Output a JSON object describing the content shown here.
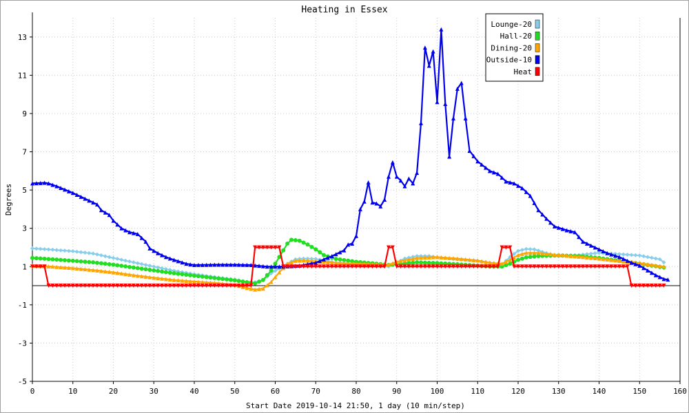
{
  "chart_data": {
    "type": "line",
    "title": "Heating in Essex",
    "xlabel": "Start Date 2019-10-14 21:50, 1 day (10 min/step)",
    "ylabel": "Degrees",
    "xlim": [
      0,
      160
    ],
    "ylim": [
      -5,
      14
    ],
    "x_ticks": [
      0,
      10,
      20,
      30,
      40,
      50,
      60,
      70,
      80,
      90,
      100,
      110,
      120,
      130,
      140,
      150,
      160
    ],
    "y_ticks": [
      -5,
      -3,
      -1,
      1,
      3,
      5,
      7,
      9,
      11,
      13
    ],
    "grid": true,
    "legend_position": "top-right",
    "series": [
      {
        "name": "Lounge-20",
        "color": "#87ceeb",
        "marker": "diamond",
        "points": [
          [
            0,
            1.95
          ],
          [
            5,
            1.88
          ],
          [
            10,
            1.8
          ],
          [
            15,
            1.68
          ],
          [
            20,
            1.45
          ],
          [
            25,
            1.22
          ],
          [
            30,
            1.0
          ],
          [
            35,
            0.78
          ],
          [
            40,
            0.6
          ],
          [
            45,
            0.45
          ],
          [
            50,
            0.32
          ],
          [
            53,
            0.2
          ],
          [
            55,
            0.18
          ],
          [
            57,
            0.3
          ],
          [
            59,
            0.65
          ],
          [
            61,
            0.9
          ],
          [
            63,
            1.15
          ],
          [
            65,
            1.38
          ],
          [
            67,
            1.42
          ],
          [
            70,
            1.4
          ],
          [
            75,
            1.2
          ],
          [
            80,
            1.08
          ],
          [
            85,
            1.02
          ],
          [
            88,
            1.0
          ],
          [
            90,
            1.2
          ],
          [
            92,
            1.42
          ],
          [
            95,
            1.55
          ],
          [
            98,
            1.55
          ],
          [
            100,
            1.48
          ],
          [
            105,
            1.38
          ],
          [
            110,
            1.3
          ],
          [
            113,
            1.2
          ],
          [
            116,
            1.1
          ],
          [
            118,
            1.5
          ],
          [
            120,
            1.82
          ],
          [
            122,
            1.92
          ],
          [
            124,
            1.9
          ],
          [
            127,
            1.7
          ],
          [
            130,
            1.55
          ],
          [
            135,
            1.6
          ],
          [
            140,
            1.72
          ],
          [
            145,
            1.65
          ],
          [
            150,
            1.58
          ],
          [
            155,
            1.38
          ],
          [
            156,
            1.22
          ]
        ]
      },
      {
        "name": "Hall-20",
        "color": "#22dd22",
        "marker": "circle",
        "points": [
          [
            0,
            1.45
          ],
          [
            5,
            1.38
          ],
          [
            10,
            1.3
          ],
          [
            15,
            1.22
          ],
          [
            20,
            1.1
          ],
          [
            25,
            0.95
          ],
          [
            30,
            0.8
          ],
          [
            35,
            0.65
          ],
          [
            40,
            0.52
          ],
          [
            45,
            0.4
          ],
          [
            50,
            0.28
          ],
          [
            53,
            0.18
          ],
          [
            55,
            0.12
          ],
          [
            57,
            0.3
          ],
          [
            59,
            0.8
          ],
          [
            61,
            1.5
          ],
          [
            63,
            2.2
          ],
          [
            64,
            2.4
          ],
          [
            66,
            2.35
          ],
          [
            68,
            2.15
          ],
          [
            70,
            1.9
          ],
          [
            72,
            1.6
          ],
          [
            75,
            1.4
          ],
          [
            80,
            1.25
          ],
          [
            85,
            1.15
          ],
          [
            88,
            1.08
          ],
          [
            90,
            1.12
          ],
          [
            95,
            1.22
          ],
          [
            100,
            1.18
          ],
          [
            105,
            1.12
          ],
          [
            110,
            1.05
          ],
          [
            113,
            1.0
          ],
          [
            116,
            1.0
          ],
          [
            118,
            1.15
          ],
          [
            120,
            1.35
          ],
          [
            122,
            1.48
          ],
          [
            125,
            1.55
          ],
          [
            130,
            1.58
          ],
          [
            135,
            1.55
          ],
          [
            140,
            1.45
          ],
          [
            145,
            1.3
          ],
          [
            150,
            1.15
          ],
          [
            156,
            0.95
          ]
        ]
      },
      {
        "name": "Dining-20",
        "color": "#ffa500",
        "marker": "triangle",
        "points": [
          [
            0,
            1.05
          ],
          [
            5,
            1.0
          ],
          [
            10,
            0.92
          ],
          [
            15,
            0.82
          ],
          [
            20,
            0.7
          ],
          [
            25,
            0.55
          ],
          [
            30,
            0.42
          ],
          [
            35,
            0.3
          ],
          [
            40,
            0.22
          ],
          [
            45,
            0.15
          ],
          [
            50,
            0.05
          ],
          [
            53,
            -0.12
          ],
          [
            55,
            -0.2
          ],
          [
            57,
            -0.15
          ],
          [
            59,
            0.2
          ],
          [
            61,
            0.7
          ],
          [
            63,
            1.15
          ],
          [
            65,
            1.3
          ],
          [
            67,
            1.32
          ],
          [
            70,
            1.28
          ],
          [
            75,
            1.2
          ],
          [
            80,
            1.15
          ],
          [
            85,
            1.12
          ],
          [
            88,
            1.1
          ],
          [
            90,
            1.25
          ],
          [
            95,
            1.45
          ],
          [
            100,
            1.5
          ],
          [
            105,
            1.42
          ],
          [
            110,
            1.32
          ],
          [
            113,
            1.2
          ],
          [
            116,
            1.15
          ],
          [
            118,
            1.35
          ],
          [
            120,
            1.6
          ],
          [
            122,
            1.72
          ],
          [
            125,
            1.72
          ],
          [
            130,
            1.6
          ],
          [
            135,
            1.52
          ],
          [
            140,
            1.42
          ],
          [
            145,
            1.3
          ],
          [
            150,
            1.18
          ],
          [
            156,
            1.0
          ]
        ]
      },
      {
        "name": "Outside-10",
        "color": "#0000ee",
        "marker": "triangle",
        "points": [
          [
            0,
            5.35
          ],
          [
            3,
            5.38
          ],
          [
            4,
            5.35
          ],
          [
            6,
            5.2
          ],
          [
            10,
            4.85
          ],
          [
            13,
            4.55
          ],
          [
            16,
            4.25
          ],
          [
            17,
            3.95
          ],
          [
            19,
            3.7
          ],
          [
            20,
            3.4
          ],
          [
            22,
            3.0
          ],
          [
            24,
            2.8
          ],
          [
            26,
            2.7
          ],
          [
            28,
            2.3
          ],
          [
            29,
            1.95
          ],
          [
            31,
            1.7
          ],
          [
            33,
            1.5
          ],
          [
            35,
            1.35
          ],
          [
            38,
            1.15
          ],
          [
            40,
            1.08
          ],
          [
            45,
            1.1
          ],
          [
            50,
            1.1
          ],
          [
            54,
            1.08
          ],
          [
            58,
            1.0
          ],
          [
            62,
            1.0
          ],
          [
            66,
            1.05
          ],
          [
            70,
            1.2
          ],
          [
            74,
            1.55
          ],
          [
            77,
            1.85
          ],
          [
            78,
            2.15
          ],
          [
            79,
            2.2
          ],
          [
            80,
            2.6
          ],
          [
            81,
            4.0
          ],
          [
            82,
            4.4
          ],
          [
            83,
            5.4
          ],
          [
            84,
            4.35
          ],
          [
            85,
            4.3
          ],
          [
            86,
            4.15
          ],
          [
            87,
            4.5
          ],
          [
            88,
            5.7
          ],
          [
            89,
            6.45
          ],
          [
            90,
            5.7
          ],
          [
            91,
            5.5
          ],
          [
            92,
            5.2
          ],
          [
            93,
            5.6
          ],
          [
            94,
            5.35
          ],
          [
            95,
            5.9
          ],
          [
            96,
            8.5
          ],
          [
            97,
            12.45
          ],
          [
            98,
            11.5
          ],
          [
            99,
            12.25
          ],
          [
            100,
            9.6
          ],
          [
            101,
            13.4
          ],
          [
            102,
            9.5
          ],
          [
            103,
            6.75
          ],
          [
            104,
            8.75
          ],
          [
            105,
            10.3
          ],
          [
            106,
            10.6
          ],
          [
            107,
            8.75
          ],
          [
            108,
            7.05
          ],
          [
            110,
            6.5
          ],
          [
            113,
            6.0
          ],
          [
            115,
            5.85
          ],
          [
            117,
            5.45
          ],
          [
            119,
            5.35
          ],
          [
            121,
            5.1
          ],
          [
            123,
            4.7
          ],
          [
            125,
            3.95
          ],
          [
            127,
            3.5
          ],
          [
            129,
            3.1
          ],
          [
            132,
            2.9
          ],
          [
            134,
            2.8
          ],
          [
            136,
            2.3
          ],
          [
            138,
            2.1
          ],
          [
            140,
            1.9
          ],
          [
            142,
            1.7
          ],
          [
            145,
            1.5
          ],
          [
            148,
            1.2
          ],
          [
            150,
            1.05
          ],
          [
            152,
            0.8
          ],
          [
            154,
            0.55
          ],
          [
            156,
            0.35
          ],
          [
            157,
            0.32
          ]
        ]
      },
      {
        "name": "Heat",
        "color": "#ff0000",
        "marker": "triangle-down",
        "points": [
          [
            0,
            1.0
          ],
          [
            3,
            1.0
          ],
          [
            4,
            0.0
          ],
          [
            10,
            0.0
          ],
          [
            20,
            0.0
          ],
          [
            30,
            0.0
          ],
          [
            40,
            0.0
          ],
          [
            50,
            0.0
          ],
          [
            54,
            0.0
          ],
          [
            55,
            2.0
          ],
          [
            60,
            2.0
          ],
          [
            61,
            2.0
          ],
          [
            62,
            1.0
          ],
          [
            70,
            1.0
          ],
          [
            80,
            1.0
          ],
          [
            87,
            1.0
          ],
          [
            88,
            2.0
          ],
          [
            89,
            2.0
          ],
          [
            90,
            1.0
          ],
          [
            100,
            1.0
          ],
          [
            110,
            1.0
          ],
          [
            115,
            1.0
          ],
          [
            116,
            2.0
          ],
          [
            118,
            2.0
          ],
          [
            119,
            1.0
          ],
          [
            130,
            1.0
          ],
          [
            140,
            1.0
          ],
          [
            147,
            1.0
          ],
          [
            148,
            0.0
          ],
          [
            152,
            0.0
          ],
          [
            156,
            0.0
          ]
        ]
      }
    ]
  }
}
